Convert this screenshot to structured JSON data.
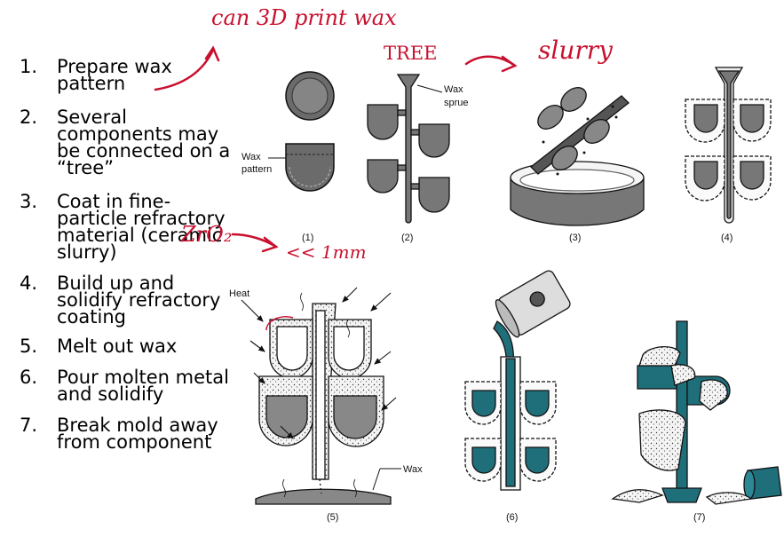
{
  "steps": [
    {
      "num": "1.",
      "text": "Prepare wax pattern"
    },
    {
      "num": "2.",
      "text": "Several components may be connected on a “tree”"
    },
    {
      "num": "3.",
      "text": "Coat in fine-particle refractory material (ceramic slurry)"
    },
    {
      "num": "4.",
      "text": "Build up and solidify refractory coating"
    },
    {
      "num": "5.",
      "text": "Melt out wax"
    },
    {
      "num": "6.",
      "text": "Pour molten metal and solidify"
    },
    {
      "num": "7.",
      "text": "Break mold away from component"
    }
  ],
  "annotations": {
    "print": "can 3D print wax",
    "tree": "TREE",
    "slurry": "slurry",
    "zro2": "ZrO₂",
    "size": "<< 1mm"
  },
  "figure": {
    "labels": {
      "wax_pattern_1": "Wax",
      "wax_pattern_2": "pattern",
      "wax_sprue_1": "Wax",
      "wax_sprue_2": "sprue",
      "heat": "Heat",
      "wax": "Wax"
    },
    "captions": [
      "(1)",
      "(2)",
      "(3)",
      "(4)",
      "(5)",
      "(6)",
      "(7)"
    ]
  },
  "colors": {
    "annotation": "#c8102e",
    "metal": "#1f6f7a",
    "wax": "#555555"
  }
}
